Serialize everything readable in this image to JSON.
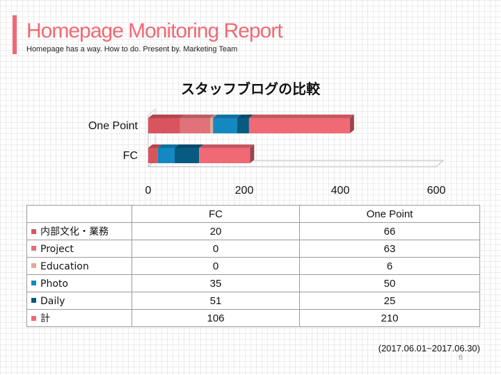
{
  "slide": {
    "title": "Homepage Monitoring Report",
    "subtitle": "Homepage has a way. How to do. Present by. Marketing Team",
    "date_range": "(2017.06.01~2017.06.30)",
    "page_number": "6",
    "accent_color": "#ef6a74"
  },
  "chart_data": {
    "type": "bar",
    "orientation": "horizontal",
    "stacked": true,
    "title": "スタッフブログの比較",
    "categories": [
      "FC",
      "One Point"
    ],
    "x_ticks": [
      "0",
      "200",
      "400",
      "600"
    ],
    "xlim": [
      0,
      600
    ],
    "grid": false,
    "legend": "table",
    "series": [
      {
        "name": "内部文化・業務",
        "values": [
          20,
          66
        ],
        "color": "#d9545e"
      },
      {
        "name": "Project",
        "values": [
          0,
          63
        ],
        "color": "#e2727a"
      },
      {
        "name": "Education",
        "values": [
          0,
          6
        ],
        "color": "#e2aa95"
      },
      {
        "name": "Photo",
        "values": [
          35,
          50
        ],
        "color": "#1488c0"
      },
      {
        "name": "Daily",
        "values": [
          51,
          25
        ],
        "color": "#075a80"
      },
      {
        "name": "計",
        "values": [
          106,
          210
        ],
        "color": "#ef6a74"
      }
    ]
  },
  "table": {
    "header": [
      "",
      "FC",
      "One Point"
    ],
    "rows": [
      {
        "label": "内部文化・業務",
        "fc": "20",
        "one_point": "66",
        "color": "#d9545e"
      },
      {
        "label": "Project",
        "fc": "0",
        "one_point": "63",
        "color": "#e2727a"
      },
      {
        "label": "Education",
        "fc": "0",
        "one_point": "6",
        "color": "#e2aa95"
      },
      {
        "label": "Photo",
        "fc": "35",
        "one_point": "50",
        "color": "#1488c0"
      },
      {
        "label": "Daily",
        "fc": "51",
        "one_point": "25",
        "color": "#075a80"
      },
      {
        "label": "計",
        "fc": "106",
        "one_point": "210",
        "color": "#ef6a74"
      }
    ]
  }
}
